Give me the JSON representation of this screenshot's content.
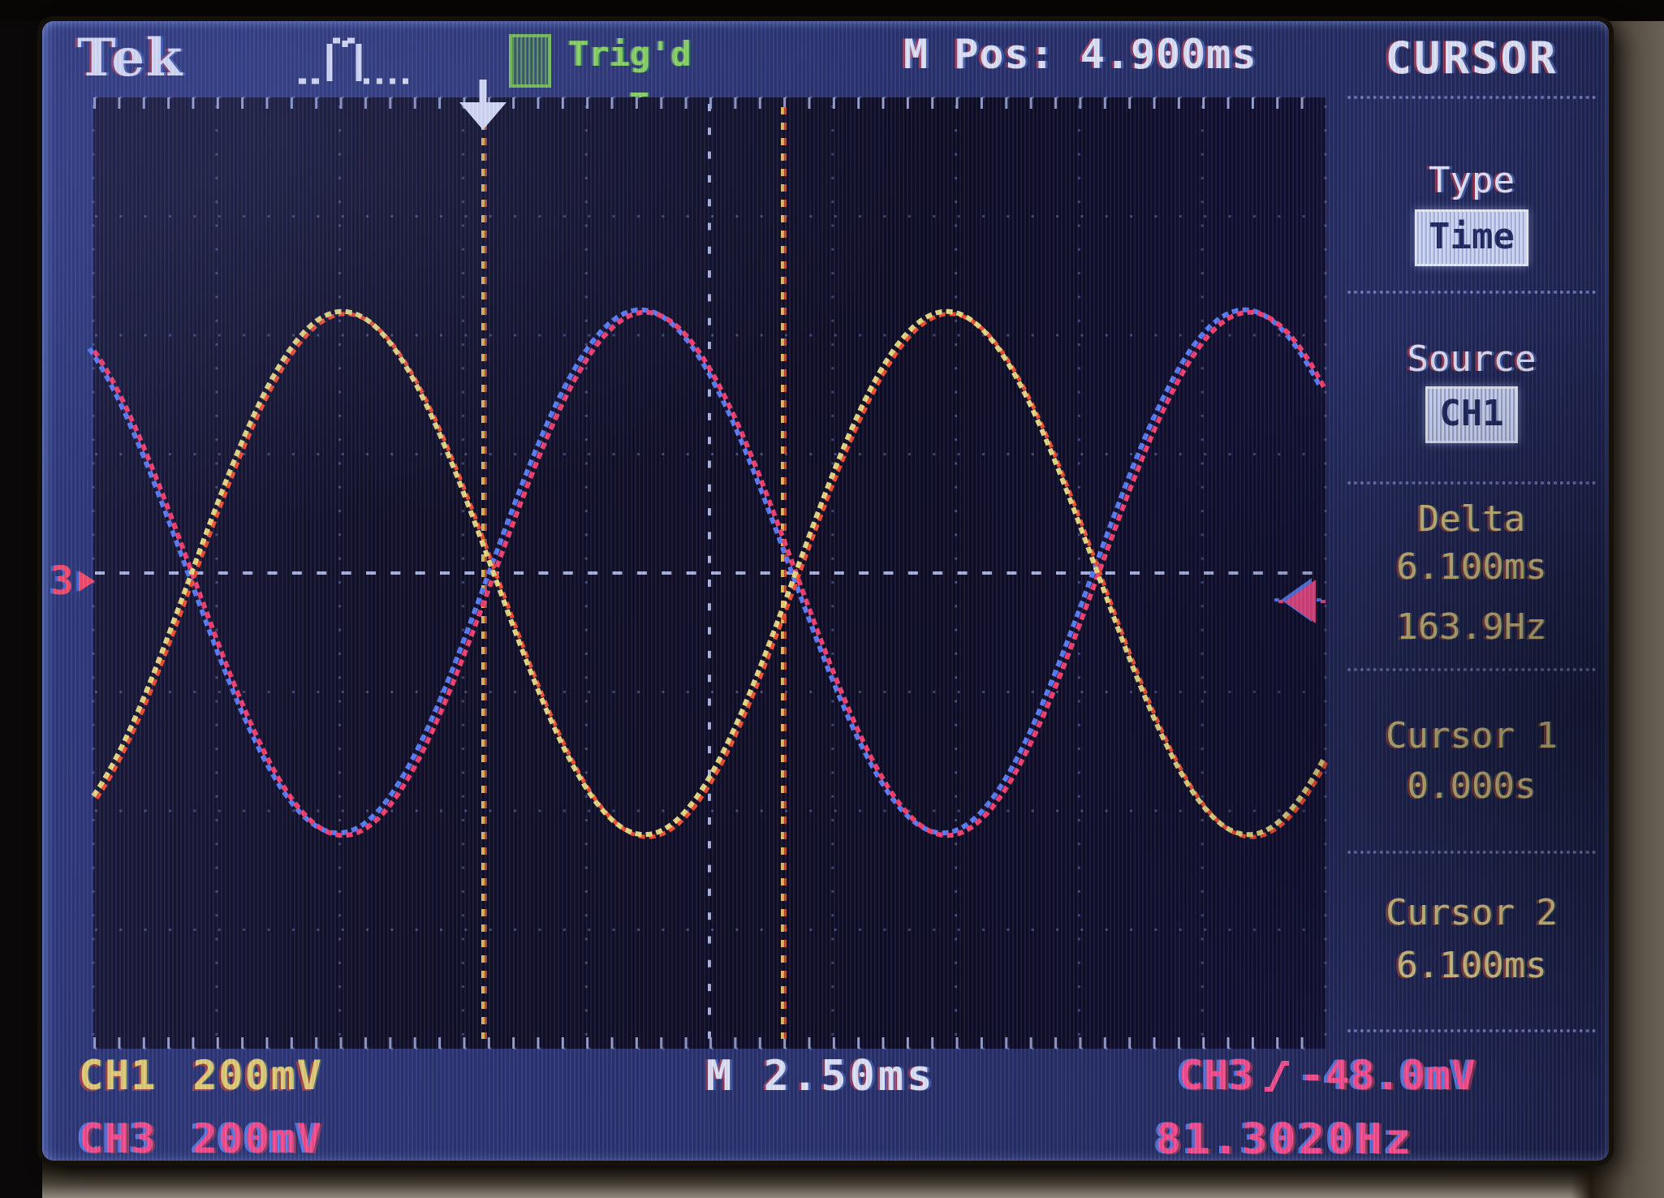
{
  "topbar": {
    "brand": "Tek",
    "trigger_icon": "T",
    "trigger_status": "Trig'd",
    "m_position": "M Pos: 4.900ms",
    "menu_title": "CURSOR"
  },
  "menu": {
    "type_label": "Type",
    "type_value": "Time",
    "source_label": "Source",
    "source_value": "CH1",
    "delta_label": "Delta",
    "delta_time": "6.100ms",
    "delta_freq": "163.9Hz",
    "cursor1_label": "Cursor 1",
    "cursor1_value": "0.000s",
    "cursor2_label": "Cursor 2",
    "cursor2_value": "6.100ms"
  },
  "readouts": {
    "ch1_label": "CH1",
    "ch1_scale": "200mV",
    "ch3_label": "CH3",
    "ch3_scale": "200mV",
    "timebase": "M 2.50ms",
    "trig_source": "CH3",
    "trig_level": "-48.0mV",
    "trig_frequency": "81.3020Hz"
  },
  "markers": {
    "ch3_ground": "3"
  },
  "chart_data": {
    "type": "line",
    "title": "Two antiphase sine waves on oscilloscope graticule",
    "x_axis": {
      "label": "time",
      "ms_per_div": 2.5,
      "divisions": 10
    },
    "y_axis": {
      "label": "voltage",
      "mV_per_div": 200,
      "divisions": 8
    },
    "grid": "dotted, 5 minor ticks per division, center axes dashed",
    "series": [
      {
        "name": "CH1",
        "color": "#f2e382",
        "amplitude_mV": 440,
        "frequency_Hz": 81.302,
        "phase_deg": 180,
        "offset_mV": 0
      },
      {
        "name": "CH3",
        "color": "#ff4070",
        "amplitude_mV": 440,
        "frequency_Hz": 81.302,
        "phase_deg": 0,
        "offset_mV": 0
      }
    ],
    "cursors": {
      "type": "Time",
      "cursor1_ms": 0.0,
      "cursor2_ms": 6.1,
      "delta_ms": 6.1,
      "delta_Hz": 163.9
    },
    "trigger": {
      "source": "CH3",
      "slope": "rising",
      "level_mV": -48.0,
      "m_pos_ms": 4.9,
      "measured_Hz": 81.302
    }
  }
}
